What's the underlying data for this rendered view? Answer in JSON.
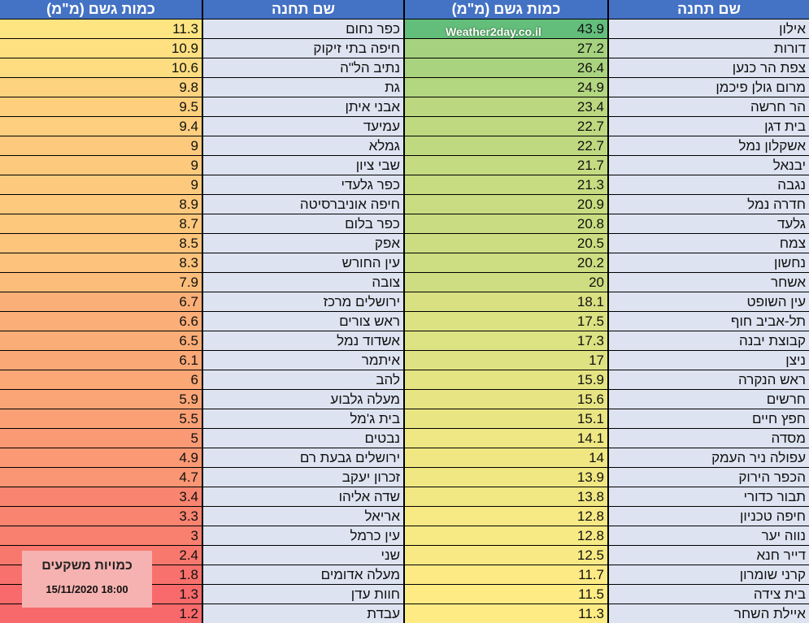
{
  "headers": {
    "right_station": "שם תחנה",
    "right_amount": "כמות גשם (מ\"מ)",
    "left_station": "שם תחנה",
    "left_amount": "כמות גשם (מ\"מ)"
  },
  "watermark": "Weather2day.co.il",
  "overlay": {
    "title": "כמויות משקעים",
    "datetime": "15/11/2020 18:00"
  },
  "right_rows": [
    {
      "station": "אילון",
      "amount": "43.9"
    },
    {
      "station": "דורות",
      "amount": "27.2"
    },
    {
      "station": "צפת הר כנען",
      "amount": "26.4"
    },
    {
      "station": "מרום גולן פיכמן",
      "amount": "24.9"
    },
    {
      "station": "הר חרשה",
      "amount": "23.4"
    },
    {
      "station": "בית דגן",
      "amount": "22.7"
    },
    {
      "station": "אשקלון נמל",
      "amount": "22.7"
    },
    {
      "station": "יבנאל",
      "amount": "21.7"
    },
    {
      "station": "נגבה",
      "amount": "21.3"
    },
    {
      "station": "חדרה נמל",
      "amount": "20.9"
    },
    {
      "station": "גלעד",
      "amount": "20.8"
    },
    {
      "station": "צמח",
      "amount": "20.5"
    },
    {
      "station": "נחשון",
      "amount": "20.2"
    },
    {
      "station": "אשחר",
      "amount": "20"
    },
    {
      "station": "עין השופט",
      "amount": "18.1"
    },
    {
      "station": "תל-אביב חוף",
      "amount": "17.5"
    },
    {
      "station": "קבוצת יבנה",
      "amount": "17.3"
    },
    {
      "station": "ניצן",
      "amount": "17"
    },
    {
      "station": "ראש הנקרה",
      "amount": "15.9"
    },
    {
      "station": "חרשים",
      "amount": "15.6"
    },
    {
      "station": "חפץ חיים",
      "amount": "15.1"
    },
    {
      "station": "מסדה",
      "amount": "14.1"
    },
    {
      "station": "עפולה ניר העמק",
      "amount": "14"
    },
    {
      "station": "הכפר הירוק",
      "amount": "13.9"
    },
    {
      "station": "תבור כדורי",
      "amount": "13.8"
    },
    {
      "station": "חיפה טכניון",
      "amount": "12.8"
    },
    {
      "station": "נווה יער",
      "amount": "12.8"
    },
    {
      "station": "דייר חנא",
      "amount": "12.5"
    },
    {
      "station": "קרני שומרון",
      "amount": "11.7"
    },
    {
      "station": "בית צידה",
      "amount": "11.5"
    },
    {
      "station": "איילת השחר",
      "amount": "11.3"
    }
  ],
  "left_rows": [
    {
      "station": "כפר נחום",
      "amount": "11.3"
    },
    {
      "station": "חיפה בתי זיקוק",
      "amount": "10.9"
    },
    {
      "station": "נתיב הל\"ה",
      "amount": "10.6"
    },
    {
      "station": "גת",
      "amount": "9.8"
    },
    {
      "station": "אבני איתן",
      "amount": "9.5"
    },
    {
      "station": "עמיעד",
      "amount": "9.4"
    },
    {
      "station": "גמלא",
      "amount": "9"
    },
    {
      "station": "שבי ציון",
      "amount": "9"
    },
    {
      "station": "כפר גלעדי",
      "amount": "9"
    },
    {
      "station": "חיפה אוניברסיטה",
      "amount": "8.9"
    },
    {
      "station": "כפר בלום",
      "amount": "8.7"
    },
    {
      "station": "אפק",
      "amount": "8.5"
    },
    {
      "station": "עין החורש",
      "amount": "8.3"
    },
    {
      "station": "צובה",
      "amount": "7.9"
    },
    {
      "station": "ירושלים מרכז",
      "amount": "6.7"
    },
    {
      "station": "ראש צורים",
      "amount": "6.6"
    },
    {
      "station": "אשדוד נמל",
      "amount": "6.5"
    },
    {
      "station": "איתמר",
      "amount": "6.1"
    },
    {
      "station": "להב",
      "amount": "6"
    },
    {
      "station": "מעלה גלבוע",
      "amount": "5.9"
    },
    {
      "station": "בית ג'מל",
      "amount": "5.5"
    },
    {
      "station": "נבטים",
      "amount": "5"
    },
    {
      "station": "ירושלים גבעת רם",
      "amount": "4.9"
    },
    {
      "station": "זכרון יעקב",
      "amount": "4.7"
    },
    {
      "station": "שדה אליהו",
      "amount": "3.4"
    },
    {
      "station": "אריאל",
      "amount": "3.3"
    },
    {
      "station": "עין כרמל",
      "amount": "3"
    },
    {
      "station": "שני",
      "amount": "2.4"
    },
    {
      "station": "מעלה אדומים",
      "amount": "1.8"
    },
    {
      "station": "חוות עדן",
      "amount": "1.3"
    },
    {
      "station": "עבדת",
      "amount": "1.2"
    }
  ]
}
